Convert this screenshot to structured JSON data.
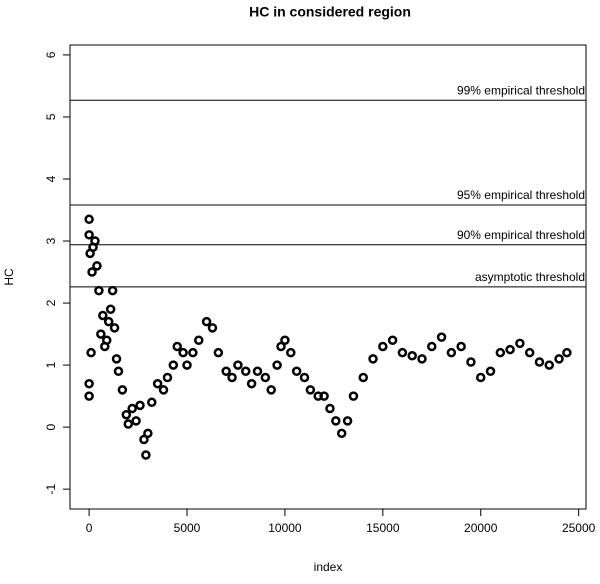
{
  "chart_data": {
    "type": "scatter",
    "title": "HC in considered region",
    "x_label": "index",
    "y_label": "HC",
    "x": [
      0,
      0,
      0,
      0,
      50,
      100,
      150,
      200,
      300,
      400,
      500,
      600,
      700,
      800,
      900,
      1000,
      1100,
      1200,
      1300,
      1400,
      1500,
      1700,
      1900,
      2000,
      2200,
      2400,
      2600,
      2800,
      2900,
      3000,
      3200,
      3500,
      3800,
      4000,
      4300,
      4500,
      4800,
      5000,
      5300,
      5600,
      6000,
      6300,
      6600,
      7000,
      7300,
      7600,
      8000,
      8300,
      8600,
      9000,
      9300,
      9600,
      9800,
      10000,
      10300,
      10600,
      11000,
      11300,
      11700,
      12000,
      12300,
      12600,
      12900,
      13200,
      13500,
      14000,
      14500,
      15000,
      15500,
      16000,
      16500,
      17000,
      17500,
      18000,
      18500,
      19000,
      19500,
      20000,
      20500,
      21000,
      21500,
      22000,
      22500,
      23000,
      23500,
      24000,
      24400
    ],
    "values": [
      3.35,
      0.5,
      3.1,
      0.7,
      2.8,
      1.2,
      2.5,
      2.9,
      3.0,
      2.6,
      2.2,
      1.5,
      1.8,
      1.3,
      1.4,
      1.7,
      1.9,
      2.2,
      1.6,
      1.1,
      0.9,
      0.6,
      0.2,
      0.05,
      0.3,
      0.1,
      0.35,
      -0.2,
      -0.45,
      -0.1,
      0.4,
      0.7,
      0.6,
      0.8,
      1.0,
      1.3,
      1.2,
      1.0,
      1.2,
      1.4,
      1.7,
      1.6,
      1.2,
      0.9,
      0.8,
      1.0,
      0.9,
      0.7,
      0.9,
      0.8,
      0.6,
      1.0,
      1.3,
      1.4,
      1.2,
      0.9,
      0.8,
      0.6,
      0.5,
      0.5,
      0.3,
      0.1,
      -0.1,
      0.1,
      0.5,
      0.8,
      1.1,
      1.3,
      1.4,
      1.2,
      1.15,
      1.1,
      1.3,
      1.45,
      1.2,
      1.3,
      1.05,
      0.8,
      0.9,
      1.2,
      1.25,
      1.35,
      1.2,
      1.05,
      1.0,
      1.1,
      1.2
    ],
    "color": "#000000",
    "xlim": [
      -976,
      25376
    ],
    "ylim": [
      -1.32,
      6.16
    ],
    "xticks": [
      0,
      5000,
      10000,
      15000,
      20000,
      25000
    ],
    "yticks": [
      -1,
      0,
      1,
      2,
      3,
      4,
      5,
      6
    ],
    "hlines": [
      {
        "value": 5.27,
        "label": "99% empirical threshold"
      },
      {
        "value": 3.58,
        "label": "95% empirical threshold"
      },
      {
        "value": 2.94,
        "label": "90% empirical threshold"
      },
      {
        "value": 2.26,
        "label": "asymptotic threshold"
      }
    ]
  }
}
